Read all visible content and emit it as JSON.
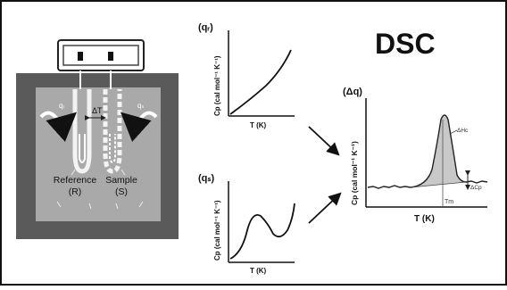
{
  "title": "DSC",
  "cell": {
    "reference_label": "Reference",
    "reference_symbol": "(R)",
    "sample_label": "Sample",
    "sample_symbol": "(S)",
    "delta_t_label": "ΔT",
    "heat_flow_left": "qᵣ",
    "heat_flow_right": "qₛ"
  },
  "charts": {
    "qr": {
      "title": "(qᵣ)",
      "ylabel": "Cp (cal mol⁻¹ K⁻¹)",
      "xlabel": "T (K)"
    },
    "qs": {
      "title": "(qₛ)",
      "ylabel": "Cp (cal mol⁻¹ K⁻¹)",
      "xlabel": "T (K)"
    },
    "dq": {
      "title": "(Δq)",
      "ylabel": "Cp (cal mol⁻¹ K⁻¹)",
      "xlabel": "T (K)",
      "peak_annotation": "ΔHc",
      "shift_annotation": "ΔCp",
      "tm_label": "Tm"
    }
  },
  "colors": {
    "frame": "#111111",
    "furnace_outer": "#5a5a5a",
    "furnace_inner": "#a9a9a9",
    "peak_fill": "#c8c8c8"
  }
}
